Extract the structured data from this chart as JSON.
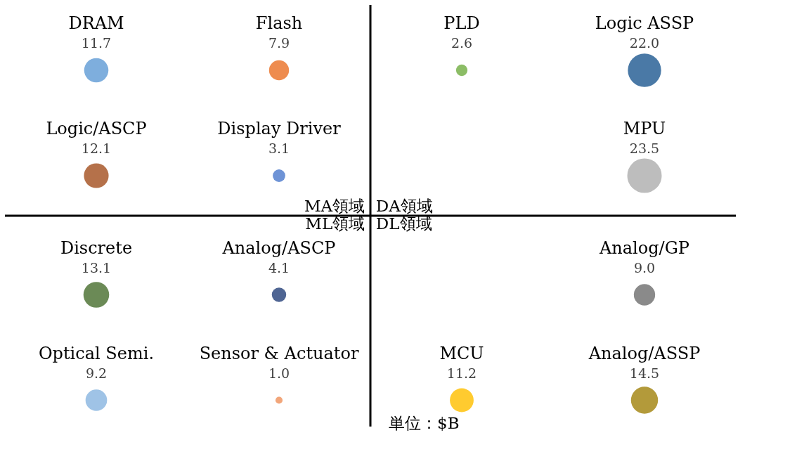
{
  "chart_data": {
    "type": "other",
    "categories": [
      "DRAM",
      "Flash",
      "PLD",
      "Logic ASSP",
      "Logic/ASCP",
      "Display Driver",
      null,
      "MPU",
      "Discrete",
      "Analog/ASCP",
      null,
      "Analog/GP",
      "Optical Semi.",
      "Sensor & Actuator",
      "MCU",
      "Analog/ASSP"
    ],
    "values": [
      11.7,
      7.9,
      2.6,
      22.0,
      12.1,
      3.1,
      null,
      23.5,
      13.1,
      4.1,
      null,
      9.0,
      9.2,
      1.0,
      11.2,
      14.5
    ],
    "colors": [
      "#7eaedd",
      "#ee8c4f",
      "#8cbd66",
      "#4a79a6",
      "#b5714a",
      "#6e93d6",
      null,
      "#bdbdbd",
      "#6b8a56",
      "#4f6593",
      null,
      "#8a8a8a",
      "#9fc3e6",
      "#f2a67a",
      "#ffcb2f",
      "#b39a3a"
    ],
    "value_labels": [
      "11.7",
      "7.9",
      "2.6",
      "22.0",
      "12.1",
      "3.1",
      null,
      "23.5",
      "13.1",
      "4.1",
      null,
      "9.0",
      "9.2",
      "1.0",
      "11.2",
      "14.5"
    ],
    "annotations": [
      "MA領域",
      "DA領域",
      "ML領域",
      "DL領域",
      "単位：$B"
    ]
  }
}
